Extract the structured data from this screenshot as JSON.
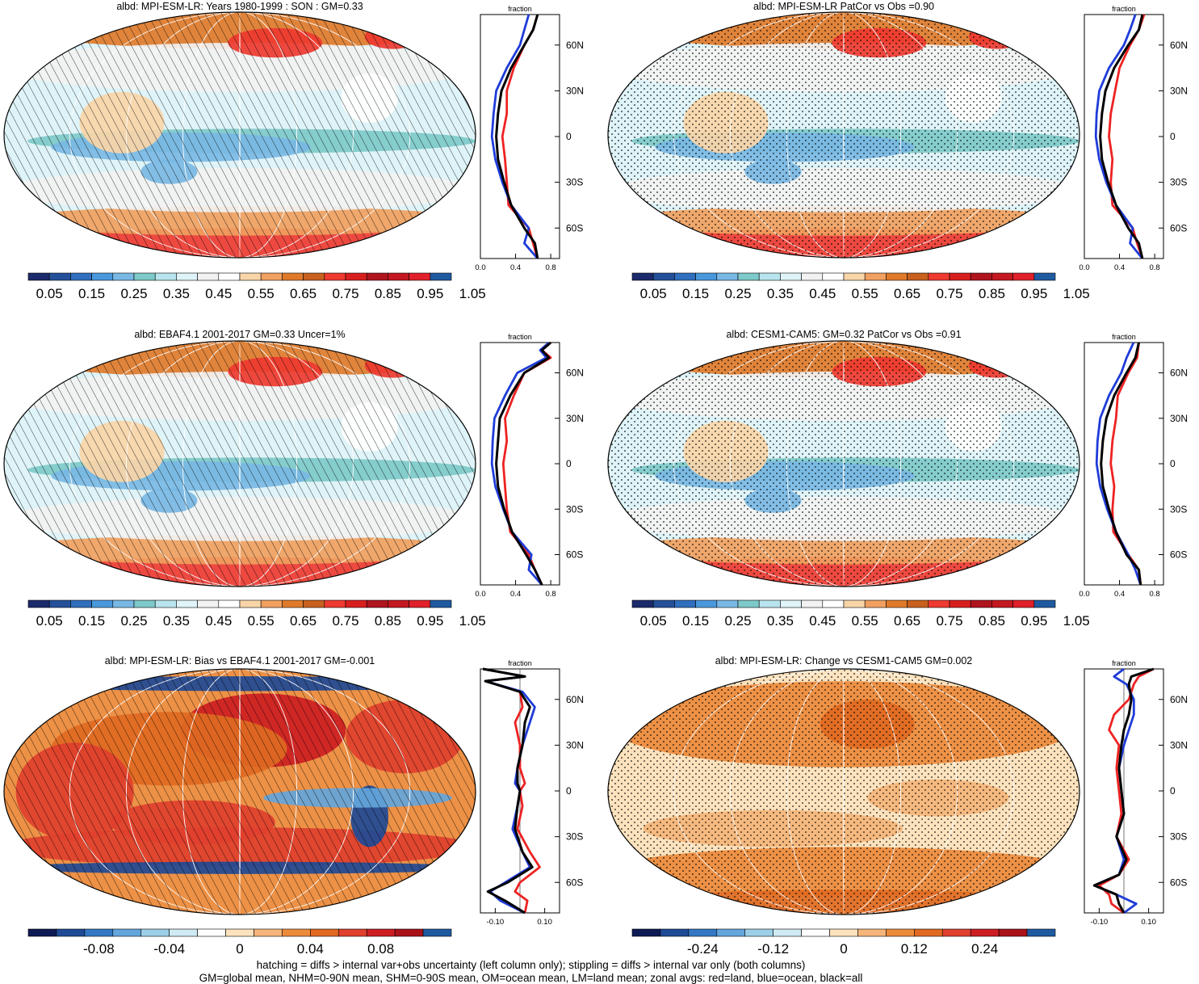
{
  "colors": {
    "abs_palette": [
      "#1b2a6b",
      "#24509a",
      "#2f6fbe",
      "#4a98dc",
      "#79b8e4",
      "#7ec9c9",
      "#b8e4ee",
      "#dff4f8",
      "#f2f2f2",
      "#ffffff",
      "#f8d5a8",
      "#f0a060",
      "#e07a2a",
      "#c8601e",
      "#ee3a30",
      "#d91e1e",
      "#b0141e",
      "#c41820",
      "#e0202a",
      "#1e5aa0"
    ],
    "diff_palette": [
      "#0d1a55",
      "#1e4a96",
      "#3478c4",
      "#64a6dc",
      "#9ccfe6",
      "#cfeaf2",
      "#ffffff",
      "#fce2bd",
      "#f4b57a",
      "#ec8a3c",
      "#e06a22",
      "#e0402e",
      "#cc1e22",
      "#aa121a",
      "#1e5aa0"
    ],
    "land_line": "#ee2222",
    "ocean_line": "#1f3cd8",
    "all_line": "#000000"
  },
  "panels": [
    {
      "title": "albd: MPI-ESM-LR: Years 1980-1999 : SON : GM=0.33",
      "colorbar_labels": [
        "0.05",
        "0.15",
        "0.25",
        "0.35",
        "0.45",
        "0.55",
        "0.65",
        "0.75",
        "0.85",
        "0.95",
        "1.05"
      ],
      "zonal_label": "fraction",
      "zonal_ticks": [
        "0.0",
        "0.4",
        "0.8"
      ]
    },
    {
      "title": "albd: MPI-ESM-LR PatCor vs Obs =0.90",
      "colorbar_labels": [
        "0.05",
        "0.15",
        "0.25",
        "0.35",
        "0.45",
        "0.55",
        "0.65",
        "0.75",
        "0.85",
        "0.95",
        "1.05"
      ],
      "zonal_label": "fraction",
      "zonal_ticks": [
        "0.0",
        "0.4",
        "0.8"
      ]
    },
    {
      "title": "albd: EBAF4.1 2001-2017 GM=0.33 Uncer=1%",
      "colorbar_labels": [
        "0.05",
        "0.15",
        "0.25",
        "0.35",
        "0.45",
        "0.55",
        "0.65",
        "0.75",
        "0.85",
        "0.95",
        "1.05"
      ],
      "zonal_label": "fraction",
      "zonal_ticks": [
        "0.0",
        "0.4",
        "0.8"
      ]
    },
    {
      "title": "albd: CESM1-CAM5: GM=0.32 PatCor vs Obs =0.91",
      "colorbar_labels": [
        "0.05",
        "0.15",
        "0.25",
        "0.35",
        "0.45",
        "0.55",
        "0.65",
        "0.75",
        "0.85",
        "0.95",
        "1.05"
      ],
      "zonal_label": "fraction",
      "zonal_ticks": [
        "0.0",
        "0.4",
        "0.8"
      ]
    },
    {
      "title": "albd: MPI-ESM-LR: Bias vs EBAF4.1 2001-2017  GM=-0.001",
      "colorbar_labels": [
        "-0.08",
        "-0.04",
        "0",
        "0.04",
        "0.08"
      ],
      "zonal_label": "fraction",
      "zonal_ticks": [
        "-0.10",
        "0.10"
      ]
    },
    {
      "title": "albd: MPI-ESM-LR: Change vs CESM1-CAM5 GM=0.002",
      "colorbar_labels": [
        "-0.24",
        "-0.12",
        "0",
        "0.12",
        "0.24"
      ],
      "zonal_label": "fraction",
      "zonal_ticks": [
        "-0.10",
        "0.10"
      ]
    }
  ],
  "lat_labels": [
    "60N",
    "30N",
    "0",
    "30S",
    "60S"
  ],
  "footnote": {
    "line1": "hatching = diffs > internal var+obs uncertainty (left column only); stippling = diffs > internal var only (both columns)",
    "line2": "GM=global mean, NHM=0-90N mean, SHM=0-90S mean, OM=ocean mean, LM=land mean; zonal avgs: red=land, blue=ocean, black=all"
  },
  "chart_data": [
    {
      "type": "heatmap",
      "title": "albd: MPI-ESM-LR: Years 1980-1999 : SON : GM=0.33",
      "variable": "albd",
      "global_mean": 0.33,
      "colorbar": {
        "min": 0.0,
        "max": 1.1,
        "step": 0.05,
        "tick_labels": [
          0.05,
          0.15,
          0.25,
          0.35,
          0.45,
          0.55,
          0.65,
          0.75,
          0.85,
          0.95,
          1.05
        ]
      },
      "zonal_mean": {
        "xlabel": "fraction",
        "xlim": [
          0.0,
          0.9
        ],
        "x_ticks": [
          0.0,
          0.4,
          0.8
        ],
        "y_ticks": [
          "60N",
          "30N",
          "0",
          "30S",
          "60S"
        ],
        "ylim": [
          -80,
          80
        ],
        "lat": [
          80,
          70,
          60,
          45,
          30,
          15,
          0,
          -15,
          -30,
          -45,
          -60,
          -70,
          -80
        ],
        "series": [
          {
            "name": "land",
            "values": [
              0.65,
              0.6,
              0.5,
              0.38,
              0.3,
              0.3,
              0.25,
              0.28,
              0.3,
              0.32,
              0.55,
              0.6,
              0.65
            ]
          },
          {
            "name": "ocean",
            "values": [
              0.55,
              0.5,
              0.45,
              0.3,
              0.18,
              0.15,
              0.13,
              0.17,
              0.25,
              0.35,
              0.55,
              0.5,
              0.65
            ]
          },
          {
            "name": "all",
            "values": [
              0.65,
              0.6,
              0.5,
              0.35,
              0.24,
              0.2,
              0.18,
              0.2,
              0.27,
              0.35,
              0.5,
              0.62,
              0.65
            ]
          }
        ]
      }
    },
    {
      "type": "heatmap",
      "title": "albd: MPI-ESM-LR PatCor vs Obs =0.90",
      "variable": "albd",
      "pattern_correlation": 0.9,
      "colorbar": {
        "min": 0.0,
        "max": 1.1,
        "step": 0.05,
        "tick_labels": [
          0.05,
          0.15,
          0.25,
          0.35,
          0.45,
          0.55,
          0.65,
          0.75,
          0.85,
          0.95,
          1.05
        ]
      },
      "zonal_mean": {
        "xlabel": "fraction",
        "xlim": [
          0.0,
          0.9
        ],
        "x_ticks": [
          0.0,
          0.4,
          0.8
        ],
        "y_ticks": [
          "60N",
          "30N",
          "0",
          "30S",
          "60S"
        ],
        "ylim": [
          -80,
          80
        ],
        "lat": [
          80,
          70,
          60,
          45,
          30,
          15,
          0,
          -15,
          -30,
          -45,
          -60,
          -70,
          -80
        ],
        "series": [
          {
            "name": "land",
            "values": [
              0.68,
              0.62,
              0.52,
              0.4,
              0.35,
              0.3,
              0.28,
              0.32,
              0.3,
              0.32,
              0.55,
              0.6,
              0.66
            ]
          },
          {
            "name": "ocean",
            "values": [
              0.58,
              0.52,
              0.45,
              0.28,
              0.17,
              0.14,
              0.13,
              0.17,
              0.25,
              0.36,
              0.55,
              0.52,
              0.66
            ]
          },
          {
            "name": "all",
            "values": [
              0.66,
              0.62,
              0.5,
              0.34,
              0.24,
              0.2,
              0.18,
              0.2,
              0.27,
              0.36,
              0.5,
              0.62,
              0.66
            ]
          }
        ]
      }
    },
    {
      "type": "heatmap",
      "title": "albd: EBAF4.1 2001-2017 GM=0.33 Uncer=1%",
      "variable": "albd",
      "global_mean": 0.33,
      "uncertainty": "1%",
      "colorbar": {
        "min": 0.0,
        "max": 1.1,
        "step": 0.05,
        "tick_labels": [
          0.05,
          0.15,
          0.25,
          0.35,
          0.45,
          0.55,
          0.65,
          0.75,
          0.85,
          0.95,
          1.05
        ]
      },
      "zonal_mean": {
        "xlabel": "fraction",
        "xlim": [
          0.0,
          0.9
        ],
        "x_ticks": [
          0.0,
          0.4,
          0.8
        ],
        "y_ticks": [
          "60N",
          "30N",
          "0",
          "30S",
          "60S"
        ],
        "ylim": [
          -80,
          80
        ],
        "lat": [
          80,
          75,
          70,
          60,
          45,
          30,
          15,
          0,
          -15,
          -30,
          -45,
          -60,
          -70,
          -80
        ],
        "series": [
          {
            "name": "land",
            "values": [
              0.8,
              0.7,
              0.8,
              0.5,
              0.38,
              0.28,
              0.3,
              0.26,
              0.28,
              0.3,
              0.34,
              0.55,
              0.62,
              0.7
            ]
          },
          {
            "name": "ocean",
            "values": [
              0.78,
              0.68,
              0.75,
              0.42,
              0.28,
              0.16,
              0.14,
              0.13,
              0.17,
              0.26,
              0.36,
              0.58,
              0.55,
              0.7
            ]
          },
          {
            "name": "all",
            "values": [
              0.8,
              0.7,
              0.78,
              0.5,
              0.34,
              0.22,
              0.2,
              0.18,
              0.2,
              0.27,
              0.36,
              0.52,
              0.62,
              0.7
            ]
          }
        ]
      }
    },
    {
      "type": "heatmap",
      "title": "albd: CESM1-CAM5: GM=0.32 PatCor vs Obs =0.91",
      "variable": "albd",
      "global_mean": 0.32,
      "pattern_correlation": 0.91,
      "colorbar": {
        "min": 0.0,
        "max": 1.1,
        "step": 0.05,
        "tick_labels": [
          0.05,
          0.15,
          0.25,
          0.35,
          0.45,
          0.55,
          0.65,
          0.75,
          0.85,
          0.95,
          1.05
        ]
      },
      "zonal_mean": {
        "xlabel": "fraction",
        "xlim": [
          0.0,
          0.9
        ],
        "x_ticks": [
          0.0,
          0.4,
          0.8
        ],
        "y_ticks": [
          "60N",
          "30N",
          "0",
          "30S",
          "60S"
        ],
        "ylim": [
          -80,
          80
        ],
        "lat": [
          80,
          70,
          60,
          45,
          30,
          15,
          0,
          -15,
          -30,
          -45,
          -60,
          -70,
          -80
        ],
        "series": [
          {
            "name": "land",
            "values": [
              0.62,
              0.6,
              0.5,
              0.38,
              0.36,
              0.32,
              0.3,
              0.34,
              0.32,
              0.33,
              0.5,
              0.62,
              0.64
            ]
          },
          {
            "name": "ocean",
            "values": [
              0.56,
              0.48,
              0.42,
              0.28,
              0.18,
              0.15,
              0.14,
              0.18,
              0.26,
              0.36,
              0.5,
              0.58,
              0.64
            ]
          },
          {
            "name": "all",
            "values": [
              0.62,
              0.58,
              0.48,
              0.34,
              0.25,
              0.21,
              0.19,
              0.21,
              0.28,
              0.36,
              0.48,
              0.62,
              0.64
            ]
          }
        ]
      }
    },
    {
      "type": "heatmap",
      "title": "albd: MPI-ESM-LR: Bias vs EBAF4.1 2001-2017  GM=-0.001",
      "variable": "albd",
      "global_mean": -0.001,
      "colorbar": {
        "min": -0.12,
        "max": 0.12,
        "tick_labels": [
          -0.08,
          -0.04,
          0,
          0.04,
          0.08
        ]
      },
      "zonal_mean": {
        "xlabel": "fraction",
        "xlim": [
          -0.16,
          0.16
        ],
        "x_ticks": [
          -0.1,
          0.1
        ],
        "y_ticks": [
          "60N",
          "30N",
          "0",
          "30S",
          "60S"
        ],
        "ylim": [
          -80,
          80
        ],
        "lat": [
          80,
          75,
          72,
          65,
          55,
          45,
          30,
          15,
          5,
          0,
          -10,
          -25,
          -40,
          -50,
          -60,
          -66,
          -72,
          -80
        ],
        "series": [
          {
            "name": "land",
            "values": [
              -0.15,
              0.02,
              -0.14,
              0.0,
              0.01,
              -0.02,
              0.0,
              0.0,
              0.02,
              0.0,
              0.01,
              -0.01,
              0.04,
              0.08,
              0.0,
              -0.02,
              0.03,
              0.02
            ]
          },
          {
            "name": "ocean",
            "values": [
              -0.15,
              0.02,
              -0.14,
              0.01,
              0.06,
              0.04,
              0.01,
              -0.01,
              -0.02,
              0.0,
              -0.01,
              -0.03,
              0.01,
              0.04,
              -0.06,
              -0.12,
              -0.08,
              0.02
            ]
          },
          {
            "name": "all",
            "values": [
              -0.15,
              0.02,
              -0.14,
              0.0,
              0.04,
              0.02,
              0.01,
              -0.01,
              -0.01,
              0.0,
              -0.01,
              -0.02,
              0.01,
              0.05,
              -0.05,
              -0.13,
              -0.06,
              0.02
            ]
          }
        ]
      }
    },
    {
      "type": "heatmap",
      "title": "albd: MPI-ESM-LR: Change vs CESM1-CAM5 GM=0.002",
      "variable": "albd",
      "global_mean": 0.002,
      "colorbar": {
        "min": -0.36,
        "max": 0.36,
        "tick_labels": [
          -0.24,
          -0.12,
          0,
          0.12,
          0.24
        ]
      },
      "zonal_mean": {
        "xlabel": "fraction",
        "xlim": [
          -0.16,
          0.16
        ],
        "x_ticks": [
          -0.1,
          0.1
        ],
        "y_ticks": [
          "60N",
          "30N",
          "0",
          "30S",
          "60S"
        ],
        "ylim": [
          -80,
          80
        ],
        "lat": [
          80,
          75,
          70,
          60,
          50,
          40,
          30,
          15,
          0,
          -15,
          -30,
          -45,
          -55,
          -62,
          -68,
          -74,
          -80
        ],
        "series": [
          {
            "name": "land",
            "values": [
              0.12,
              0.06,
              0.04,
              0.02,
              -0.04,
              -0.06,
              -0.02,
              -0.03,
              -0.02,
              -0.01,
              -0.03,
              0.02,
              -0.02,
              -0.1,
              -0.06,
              -0.05,
              0.0
            ]
          },
          {
            "name": "ocean",
            "values": [
              0.0,
              -0.04,
              0.01,
              0.04,
              0.04,
              0.02,
              0.0,
              -0.02,
              -0.01,
              0.0,
              -0.03,
              0.0,
              -0.02,
              -0.12,
              -0.03,
              0.05,
              0.0
            ]
          },
          {
            "name": "all",
            "values": [
              0.12,
              0.03,
              0.02,
              0.03,
              0.02,
              0.0,
              -0.01,
              -0.02,
              -0.01,
              0.0,
              -0.03,
              0.01,
              -0.02,
              -0.12,
              -0.03,
              -0.02,
              0.0
            ]
          }
        ]
      }
    }
  ]
}
